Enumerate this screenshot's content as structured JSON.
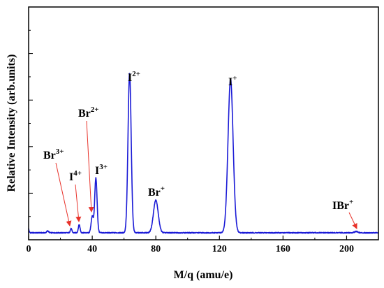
{
  "chart_data": {
    "type": "line",
    "title": "",
    "xlabel": "M/q (amu/e)",
    "ylabel": "Relative Intensity (arb.units)",
    "xlim": [
      0,
      220
    ],
    "ylim": [
      0,
      1.0
    ],
    "x_ticks": [
      0,
      40,
      80,
      120,
      160,
      200
    ],
    "y_ticks_labeled": false,
    "grid": false,
    "legend": "none",
    "line_color": "#1a1ad6",
    "arrow_color": "#e8322a",
    "baseline": 0.03,
    "series": [
      {
        "values_description_free": true,
        "peaks": [
          {
            "x": 12,
            "height": 0.008,
            "width": 0.6
          },
          {
            "x": 26.7,
            "height": 0.018,
            "width": 0.5
          },
          {
            "x": 31.8,
            "height": 0.035,
            "width": 0.55
          },
          {
            "x": 40.0,
            "height": 0.07,
            "width": 0.7
          },
          {
            "x": 42.3,
            "height": 0.235,
            "width": 0.75
          },
          {
            "x": 63.5,
            "height": 0.685,
            "width": 1.0
          },
          {
            "x": 80.0,
            "height": 0.14,
            "width": 1.5
          },
          {
            "x": 127.0,
            "height": 0.66,
            "width": 1.6
          },
          {
            "x": 206.0,
            "height": 0.006,
            "width": 1.0
          }
        ]
      }
    ],
    "annotations": [
      {
        "base": "Br",
        "sup": "3+",
        "x": 26.7,
        "arrow": true
      },
      {
        "base": "I",
        "sup": "4+",
        "x": 31.8,
        "arrow": true
      },
      {
        "base": "Br",
        "sup": "2+",
        "x": 40.0,
        "arrow": true
      },
      {
        "base": "I",
        "sup": "3+",
        "x": 42.3,
        "arrow": false
      },
      {
        "base": "I",
        "sup": "2+",
        "x": 63.5,
        "arrow": false
      },
      {
        "base": "Br",
        "sup": "+",
        "x": 80.0,
        "arrow": false
      },
      {
        "base": "I",
        "sup": "+",
        "x": 127.0,
        "arrow": false
      },
      {
        "base": "IBr",
        "sup": "+",
        "x": 206.0,
        "arrow": true
      }
    ]
  }
}
